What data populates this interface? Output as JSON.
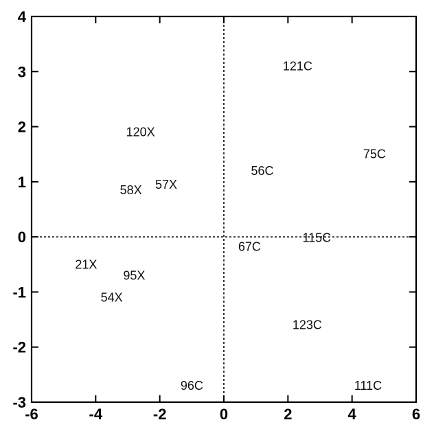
{
  "chart_data": {
    "type": "scatter",
    "title": "",
    "xlabel": "",
    "ylabel": "",
    "xlim": [
      -6,
      6
    ],
    "ylim": [
      -3,
      4
    ],
    "x_ticks": [
      -6,
      -4,
      -2,
      0,
      2,
      4,
      6
    ],
    "y_ticks": [
      -3,
      -2,
      -1,
      0,
      1,
      2,
      3,
      4
    ],
    "x_tick_labels": [
      "-6",
      "-4",
      "-2",
      "0",
      "2",
      "4",
      "6"
    ],
    "y_tick_labels": [
      "-3",
      "-2",
      "-1",
      "0",
      "1",
      "2",
      "3",
      "4"
    ],
    "grid": false,
    "reference_lines": {
      "x": 0,
      "y": 0,
      "style": "dotted"
    },
    "points": [
      {
        "label": "121C",
        "x": 2.3,
        "y": 3.1
      },
      {
        "label": "120X",
        "x": -2.6,
        "y": 1.9
      },
      {
        "label": "75C",
        "x": 4.7,
        "y": 1.5
      },
      {
        "label": "56C",
        "x": 1.2,
        "y": 1.2
      },
      {
        "label": "57X",
        "x": -1.8,
        "y": 0.95
      },
      {
        "label": "58X",
        "x": -2.9,
        "y": 0.85
      },
      {
        "label": "115C",
        "x": 2.9,
        "y": -0.02
      },
      {
        "label": "67C",
        "x": 0.8,
        "y": -0.18
      },
      {
        "label": "21X",
        "x": -4.3,
        "y": -0.5
      },
      {
        "label": "95X",
        "x": -2.8,
        "y": -0.7
      },
      {
        "label": "54X",
        "x": -3.5,
        "y": -1.1
      },
      {
        "label": "123C",
        "x": 2.6,
        "y": -1.6
      },
      {
        "label": "96C",
        "x": -1.0,
        "y": -2.7
      },
      {
        "label": "111C",
        "x": 4.5,
        "y": -2.7
      }
    ]
  }
}
